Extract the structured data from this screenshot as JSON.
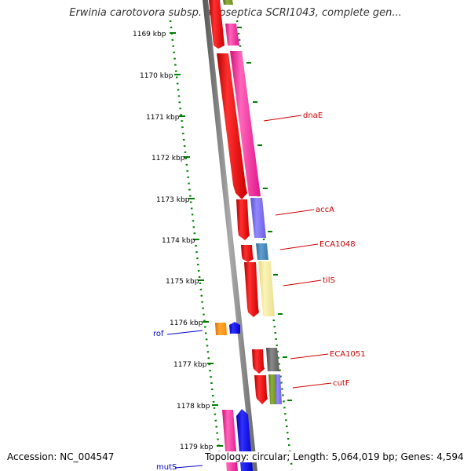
{
  "title": "Erwinia carotovora subsp. atroseptica SCRI1043, complete gen...",
  "footer": {
    "accession": "Accession: NC_004547",
    "topology": "Topology: circular; Length: 5,064,019 bp; Genes: 4,594"
  },
  "ruler": {
    "unit": "kbp",
    "ticks": [
      {
        "label": "1169 kbp"
      },
      {
        "label": "1170 kbp"
      },
      {
        "label": "1171 kbp"
      },
      {
        "label": "1172 kbp"
      },
      {
        "label": "1173 kbp"
      },
      {
        "label": "1174 kbp"
      },
      {
        "label": "1175 kbp"
      },
      {
        "label": "1176 kbp"
      },
      {
        "label": "1177 kbp"
      },
      {
        "label": "1178 kbp"
      },
      {
        "label": "1179 kbp"
      }
    ]
  },
  "genes": [
    {
      "label": "dnaE",
      "color": "#cc0000"
    },
    {
      "label": "accA",
      "color": "#cc0000"
    },
    {
      "label": "ECA1048",
      "color": "#cc0000"
    },
    {
      "label": "tilS",
      "color": "#cc0000"
    },
    {
      "label": "rof",
      "color": "#0000cc"
    },
    {
      "label": "ECA1051",
      "color": "#cc0000"
    },
    {
      "label": "cutF",
      "color": "#cc0000"
    },
    {
      "label": "mutS",
      "color": "#0000cc"
    }
  ],
  "colors": {
    "backbone": "#888888",
    "ruler_ticks": "#008000",
    "cds_forward": "#ff0000",
    "cds_reverse": "#0000ff",
    "cog_magenta": "#ff1493",
    "cog_purple": "#7b68ee",
    "cog_steelblue": "#4682b4",
    "cog_khaki": "#f0e68c",
    "cog_orange": "#ff8c00",
    "cog_gray": "#666666",
    "cog_olive": "#6b8e23"
  }
}
